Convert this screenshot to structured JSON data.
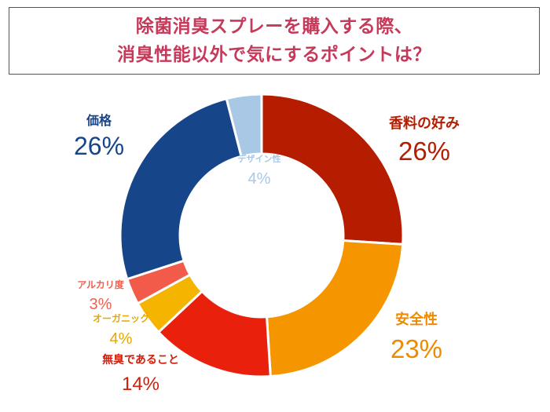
{
  "title": {
    "line1": "除菌消臭スプレーを購入する際、",
    "line2": "消臭性能以外で気にするポイントは？"
  },
  "chart_data": {
    "type": "pie",
    "donut": true,
    "unit": "%",
    "slices": [
      {
        "label": "香料の好み",
        "value": 26,
        "value_text": "26%",
        "color": "#b51c00",
        "label_color": "#b51c00"
      },
      {
        "label": "安全性",
        "value": 23,
        "value_text": "23%",
        "color": "#f59500",
        "label_color": "#ee8a00"
      },
      {
        "label": "無臭であること",
        "value": 14,
        "value_text": "14%",
        "color": "#e8200c",
        "label_color": "#d11e0b"
      },
      {
        "label": "オーガニック",
        "value": 4,
        "value_text": "4%",
        "color": "#f5b400",
        "label_color": "#e6a800"
      },
      {
        "label": "アルカリ度",
        "value": 3,
        "value_text": "3%",
        "color": "#f25a4a",
        "label_color": "#f06050"
      },
      {
        "label": "価格",
        "value": 26,
        "value_text": "26%",
        "color": "#16458a",
        "label_color": "#16458a"
      },
      {
        "label": "デザイン性",
        "value": 4,
        "value_text": "4%",
        "color": "#a8c8e6",
        "label_color": "#a8c8e6"
      }
    ]
  }
}
